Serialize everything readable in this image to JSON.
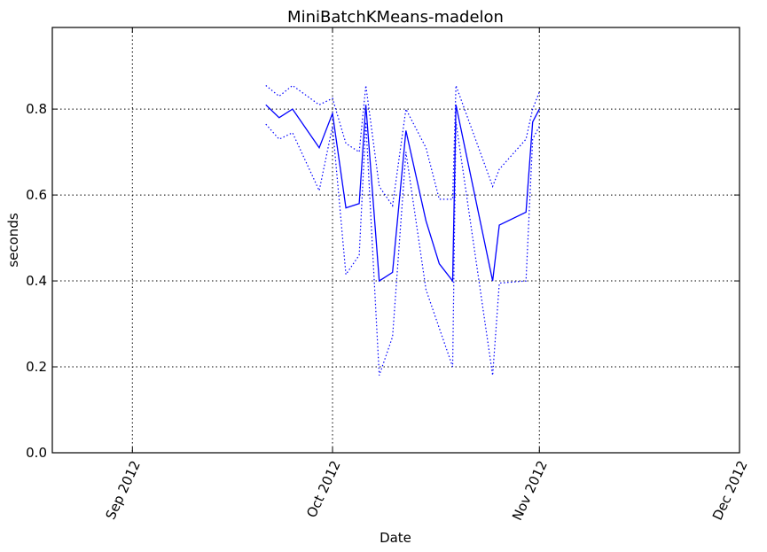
{
  "chart_data": {
    "type": "line",
    "title": "MiniBatchKMeans-madelon",
    "xlabel": "Date",
    "ylabel": "seconds",
    "x_axis": {
      "kind": "date",
      "range": [
        "2012-08-20",
        "2012-12-01"
      ],
      "ticks": [
        {
          "date": "2012-09-01",
          "label": "Sep 2012"
        },
        {
          "date": "2012-10-01",
          "label": "Oct 2012"
        },
        {
          "date": "2012-11-01",
          "label": "Nov 2012"
        },
        {
          "date": "2012-12-01",
          "label": "Dec 2012"
        }
      ]
    },
    "ylim": [
      0,
      0.99
    ],
    "y_ticks": [
      "0.0",
      "0.2",
      "0.4",
      "0.6",
      "0.8"
    ],
    "grid": true,
    "colors": {
      "series": "#0000ff"
    },
    "series": [
      {
        "role": "mean",
        "style": "solid",
        "points": [
          [
            "2012-09-21",
            0.81
          ],
          [
            "2012-09-23",
            0.78
          ],
          [
            "2012-09-25",
            0.8
          ],
          [
            "2012-09-29",
            0.71
          ],
          [
            "2012-10-01",
            0.79
          ],
          [
            "2012-10-03",
            0.57
          ],
          [
            "2012-10-05",
            0.58
          ],
          [
            "2012-10-06",
            0.81
          ],
          [
            "2012-10-08",
            0.4
          ],
          [
            "2012-10-10",
            0.42
          ],
          [
            "2012-10-12",
            0.75
          ],
          [
            "2012-10-15",
            0.54
          ],
          [
            "2012-10-17",
            0.44
          ],
          [
            "2012-10-19",
            0.4
          ],
          [
            "2012-10-19T12:00",
            0.81
          ],
          [
            "2012-10-25",
            0.4
          ],
          [
            "2012-10-26",
            0.53
          ],
          [
            "2012-10-30",
            0.56
          ],
          [
            "2012-10-31",
            0.77
          ],
          [
            "2012-11-01",
            0.8
          ]
        ]
      },
      {
        "role": "upper",
        "style": "dotted",
        "points": [
          [
            "2012-09-21",
            0.855
          ],
          [
            "2012-09-23",
            0.83
          ],
          [
            "2012-09-25",
            0.855
          ],
          [
            "2012-09-29",
            0.81
          ],
          [
            "2012-10-01",
            0.825
          ],
          [
            "2012-10-03",
            0.72
          ],
          [
            "2012-10-05",
            0.7
          ],
          [
            "2012-10-06",
            0.855
          ],
          [
            "2012-10-08",
            0.62
          ],
          [
            "2012-10-10",
            0.575
          ],
          [
            "2012-10-12",
            0.8
          ],
          [
            "2012-10-15",
            0.71
          ],
          [
            "2012-10-17",
            0.59
          ],
          [
            "2012-10-19",
            0.59
          ],
          [
            "2012-10-19T12:00",
            0.855
          ],
          [
            "2012-10-25",
            0.62
          ],
          [
            "2012-10-26",
            0.66
          ],
          [
            "2012-10-30",
            0.73
          ],
          [
            "2012-10-31",
            0.8
          ],
          [
            "2012-11-01",
            0.84
          ]
        ]
      },
      {
        "role": "lower",
        "style": "dotted",
        "points": [
          [
            "2012-09-21",
            0.765
          ],
          [
            "2012-09-23",
            0.73
          ],
          [
            "2012-09-25",
            0.745
          ],
          [
            "2012-09-29",
            0.61
          ],
          [
            "2012-10-01",
            0.76
          ],
          [
            "2012-10-03",
            0.415
          ],
          [
            "2012-10-05",
            0.46
          ],
          [
            "2012-10-06",
            0.77
          ],
          [
            "2012-10-08",
            0.18
          ],
          [
            "2012-10-10",
            0.27
          ],
          [
            "2012-10-12",
            0.7
          ],
          [
            "2012-10-15",
            0.38
          ],
          [
            "2012-10-17",
            0.29
          ],
          [
            "2012-10-19",
            0.2
          ],
          [
            "2012-10-19T12:00",
            0.77
          ],
          [
            "2012-10-25",
            0.18
          ],
          [
            "2012-10-26",
            0.395
          ],
          [
            "2012-10-30",
            0.4
          ],
          [
            "2012-10-31",
            0.73
          ],
          [
            "2012-11-01",
            0.76
          ]
        ]
      }
    ]
  }
}
